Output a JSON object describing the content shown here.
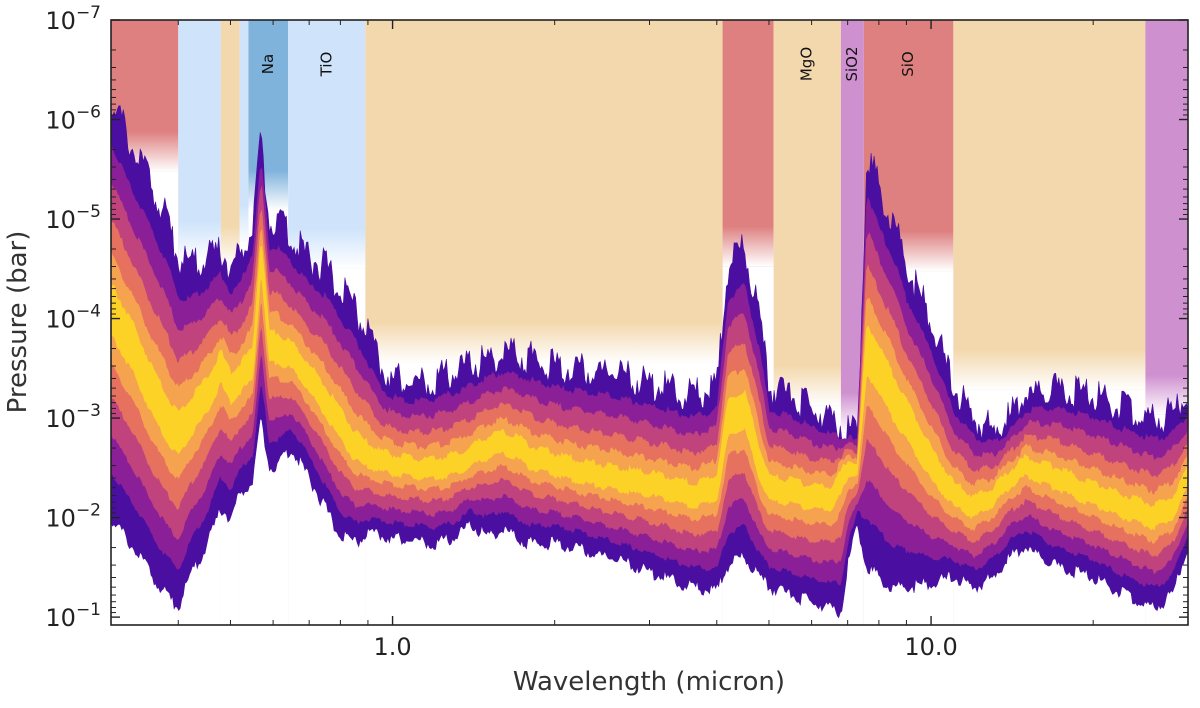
{
  "chart_data": {
    "type": "area",
    "title": "",
    "xlabel": "Wavelength (micron)",
    "ylabel": "Pressure (bar)",
    "xscale": "log",
    "yscale": "log",
    "xlim": [
      0.3,
      30
    ],
    "ylim": [
      1e-07,
      0.12
    ],
    "y_inverted": true,
    "x_tick_labels": [
      {
        "value": 1.0,
        "label": "1.0"
      },
      {
        "value": 10.0,
        "label": "10.0"
      }
    ],
    "y_tick_labels": [
      {
        "value": 1e-07,
        "base": "10",
        "exp": "−7"
      },
      {
        "value": 1e-06,
        "base": "10",
        "exp": "−6"
      },
      {
        "value": 1e-05,
        "base": "10",
        "exp": "−5"
      },
      {
        "value": 0.0001,
        "base": "10",
        "exp": "−4"
      },
      {
        "value": 0.001,
        "base": "10",
        "exp": "−3"
      },
      {
        "value": 0.01,
        "base": "10",
        "exp": "−2"
      },
      {
        "value": 0.1,
        "base": "10",
        "exp": "−1"
      }
    ],
    "species_bands": [
      {
        "x0": 0.3,
        "x1": 0.4,
        "color": "#de8080",
        "top_bar": 1e-07,
        "label": ""
      },
      {
        "x0": 0.4,
        "x1": 0.48,
        "color": "#cfe4fb",
        "top_bar": 1e-07,
        "label": ""
      },
      {
        "x0": 0.48,
        "x1": 0.52,
        "color": "#f3d8ad",
        "top_bar": 1e-07,
        "label": ""
      },
      {
        "x0": 0.52,
        "x1": 0.54,
        "color": "#cfe4fb",
        "top_bar": 1e-07,
        "label": ""
      },
      {
        "x0": 0.54,
        "x1": 0.64,
        "color": "#80b3dc",
        "top_bar": 1e-07,
        "label": "Na"
      },
      {
        "x0": 0.64,
        "x1": 0.89,
        "color": "#cfe4fb",
        "top_bar": 1e-07,
        "label": "TiO"
      },
      {
        "x0": 0.89,
        "x1": 4.1,
        "color": "#f3d8ad",
        "top_bar": 1e-07,
        "label": ""
      },
      {
        "x0": 4.1,
        "x1": 5.1,
        "color": "#de8080",
        "top_bar": 1e-07,
        "label": ""
      },
      {
        "x0": 5.1,
        "x1": 6.8,
        "color": "#f3d8ad",
        "top_bar": 1e-07,
        "label": "MgO"
      },
      {
        "x0": 6.8,
        "x1": 7.5,
        "color": "#cf90d0",
        "top_bar": 1e-07,
        "label": "SiO2"
      },
      {
        "x0": 7.5,
        "x1": 11.0,
        "color": "#de8080",
        "top_bar": 1e-07,
        "label": "SiO"
      },
      {
        "x0": 11.0,
        "x1": 25.0,
        "color": "#f3d8ad",
        "top_bar": 1e-07,
        "label": ""
      },
      {
        "x0": 25.0,
        "x1": 30.0,
        "color": "#cf90d0",
        "top_bar": 1e-07,
        "label": ""
      }
    ],
    "contribution_function": {
      "description": "Emission contribution function vs wavelength; pressure bounds of contribution envelope (bar)",
      "colors": [
        "#4a0fa0",
        "#8a1f98",
        "#c0437d",
        "#e6715f",
        "#f6a350",
        "#fcd227"
      ],
      "wavelength": [
        0.3,
        0.33,
        0.36,
        0.38,
        0.4,
        0.42,
        0.45,
        0.48,
        0.5,
        0.52,
        0.55,
        0.57,
        0.59,
        0.61,
        0.65,
        0.7,
        0.75,
        0.8,
        0.85,
        0.9,
        0.95,
        1.0,
        1.1,
        1.2,
        1.3,
        1.4,
        1.5,
        1.6,
        1.7,
        1.8,
        2.0,
        2.2,
        2.5,
        2.8,
        3.2,
        3.6,
        4.0,
        4.2,
        4.5,
        4.8,
        5.0,
        5.5,
        6.0,
        6.5,
        6.8,
        7.0,
        7.3,
        7.6,
        8.0,
        8.5,
        9.0,
        10.0,
        11.0,
        12.0,
        13.0,
        14.0,
        15.0,
        17.0,
        20.0,
        23.0,
        26.0,
        28.0,
        30.0
      ],
      "p_top": [
        6e-07,
        2e-06,
        5e-06,
        1e-05,
        2.5e-05,
        3e-05,
        2.5e-05,
        2e-05,
        3e-05,
        2.5e-05,
        1e-05,
        1.5e-06,
        1e-05,
        1e-05,
        1.5e-05,
        2.5e-05,
        3e-05,
        5e-05,
        8e-05,
        0.00015,
        0.0003,
        0.0004,
        0.00045,
        0.0004,
        0.00035,
        0.0003,
        0.00025,
        0.00022,
        0.00023,
        0.00025,
        0.0003,
        0.00032,
        0.00035,
        0.0004,
        0.0005,
        0.0006,
        0.0005,
        3e-05,
        2e-05,
        0.0001,
        0.0005,
        0.0006,
        0.0008,
        0.001,
        0.0012,
        0.0013,
        0.0015,
        2e-06,
        5e-06,
        1e-05,
        3e-05,
        0.0001,
        0.0005,
        0.001,
        0.0013,
        0.001,
        0.0006,
        0.0005,
        0.0006,
        0.0008,
        0.001,
        0.0009,
        0.0006
      ],
      "p_bottom": [
        0.01,
        0.02,
        0.04,
        0.06,
        0.08,
        0.04,
        0.02,
        0.008,
        0.01,
        0.006,
        0.004,
        0.001,
        0.003,
        0.003,
        0.002,
        0.004,
        0.008,
        0.015,
        0.018,
        0.015,
        0.015,
        0.016,
        0.017,
        0.018,
        0.016,
        0.012,
        0.015,
        0.013,
        0.016,
        0.018,
        0.018,
        0.02,
        0.025,
        0.03,
        0.04,
        0.05,
        0.055,
        0.03,
        0.025,
        0.04,
        0.05,
        0.06,
        0.07,
        0.08,
        0.09,
        0.03,
        0.012,
        0.03,
        0.04,
        0.05,
        0.05,
        0.045,
        0.04,
        0.05,
        0.04,
        0.025,
        0.02,
        0.03,
        0.04,
        0.06,
        0.08,
        0.06,
        0.02
      ],
      "p_peak": [
        8e-05,
        0.0002,
        0.0006,
        0.001,
        0.0015,
        0.001,
        0.0006,
        0.0003,
        0.0005,
        0.0004,
        0.0003,
        2e-05,
        0.0002,
        0.0002,
        0.00025,
        0.0004,
        0.0007,
        0.0012,
        0.002,
        0.0025,
        0.0028,
        0.003,
        0.0032,
        0.0033,
        0.003,
        0.0025,
        0.002,
        0.0018,
        0.002,
        0.0025,
        0.003,
        0.0035,
        0.004,
        0.0045,
        0.005,
        0.006,
        0.005,
        0.001,
        0.0008,
        0.003,
        0.005,
        0.0055,
        0.006,
        0.006,
        0.004,
        0.003,
        0.003,
        0.0002,
        0.0003,
        0.0006,
        0.001,
        0.003,
        0.006,
        0.008,
        0.006,
        0.004,
        0.003,
        0.004,
        0.006,
        0.008,
        0.01,
        0.008,
        0.004
      ]
    }
  }
}
